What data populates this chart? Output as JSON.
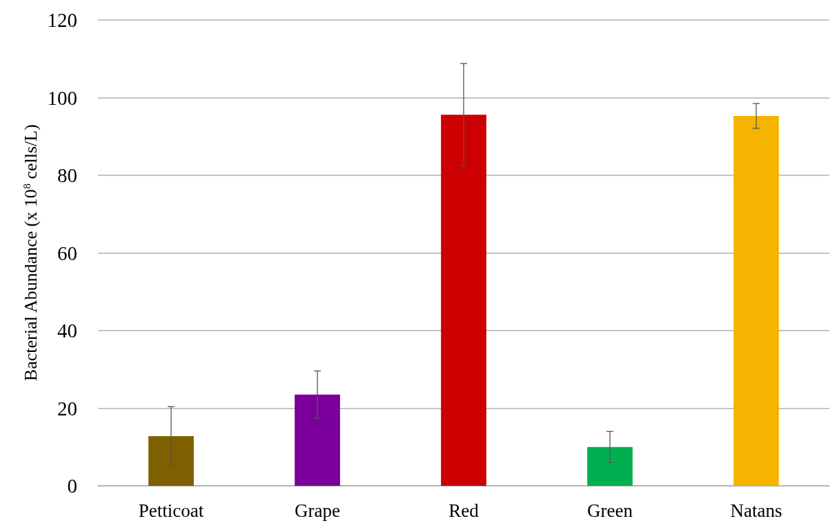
{
  "chart_data": {
    "type": "bar",
    "ylabel": "Bacterial Abundance (x 10$^{8}$ cells/L)",
    "categories": [
      "Petticoat",
      "Grape",
      "Red",
      "Green",
      "Natans"
    ],
    "values": [
      12.8,
      23.5,
      95.6,
      10.0,
      95.3
    ],
    "colors": [
      "#7f6000",
      "#7b009b",
      "#cc0000",
      "#00b050",
      "#f5b400"
    ],
    "errors": [
      7.6,
      6.1,
      13.2,
      4.0,
      3.2
    ],
    "ylim": [
      0,
      120
    ],
    "yticks": [
      0,
      20,
      40,
      60,
      80,
      100,
      120
    ],
    "grid": "y"
  }
}
